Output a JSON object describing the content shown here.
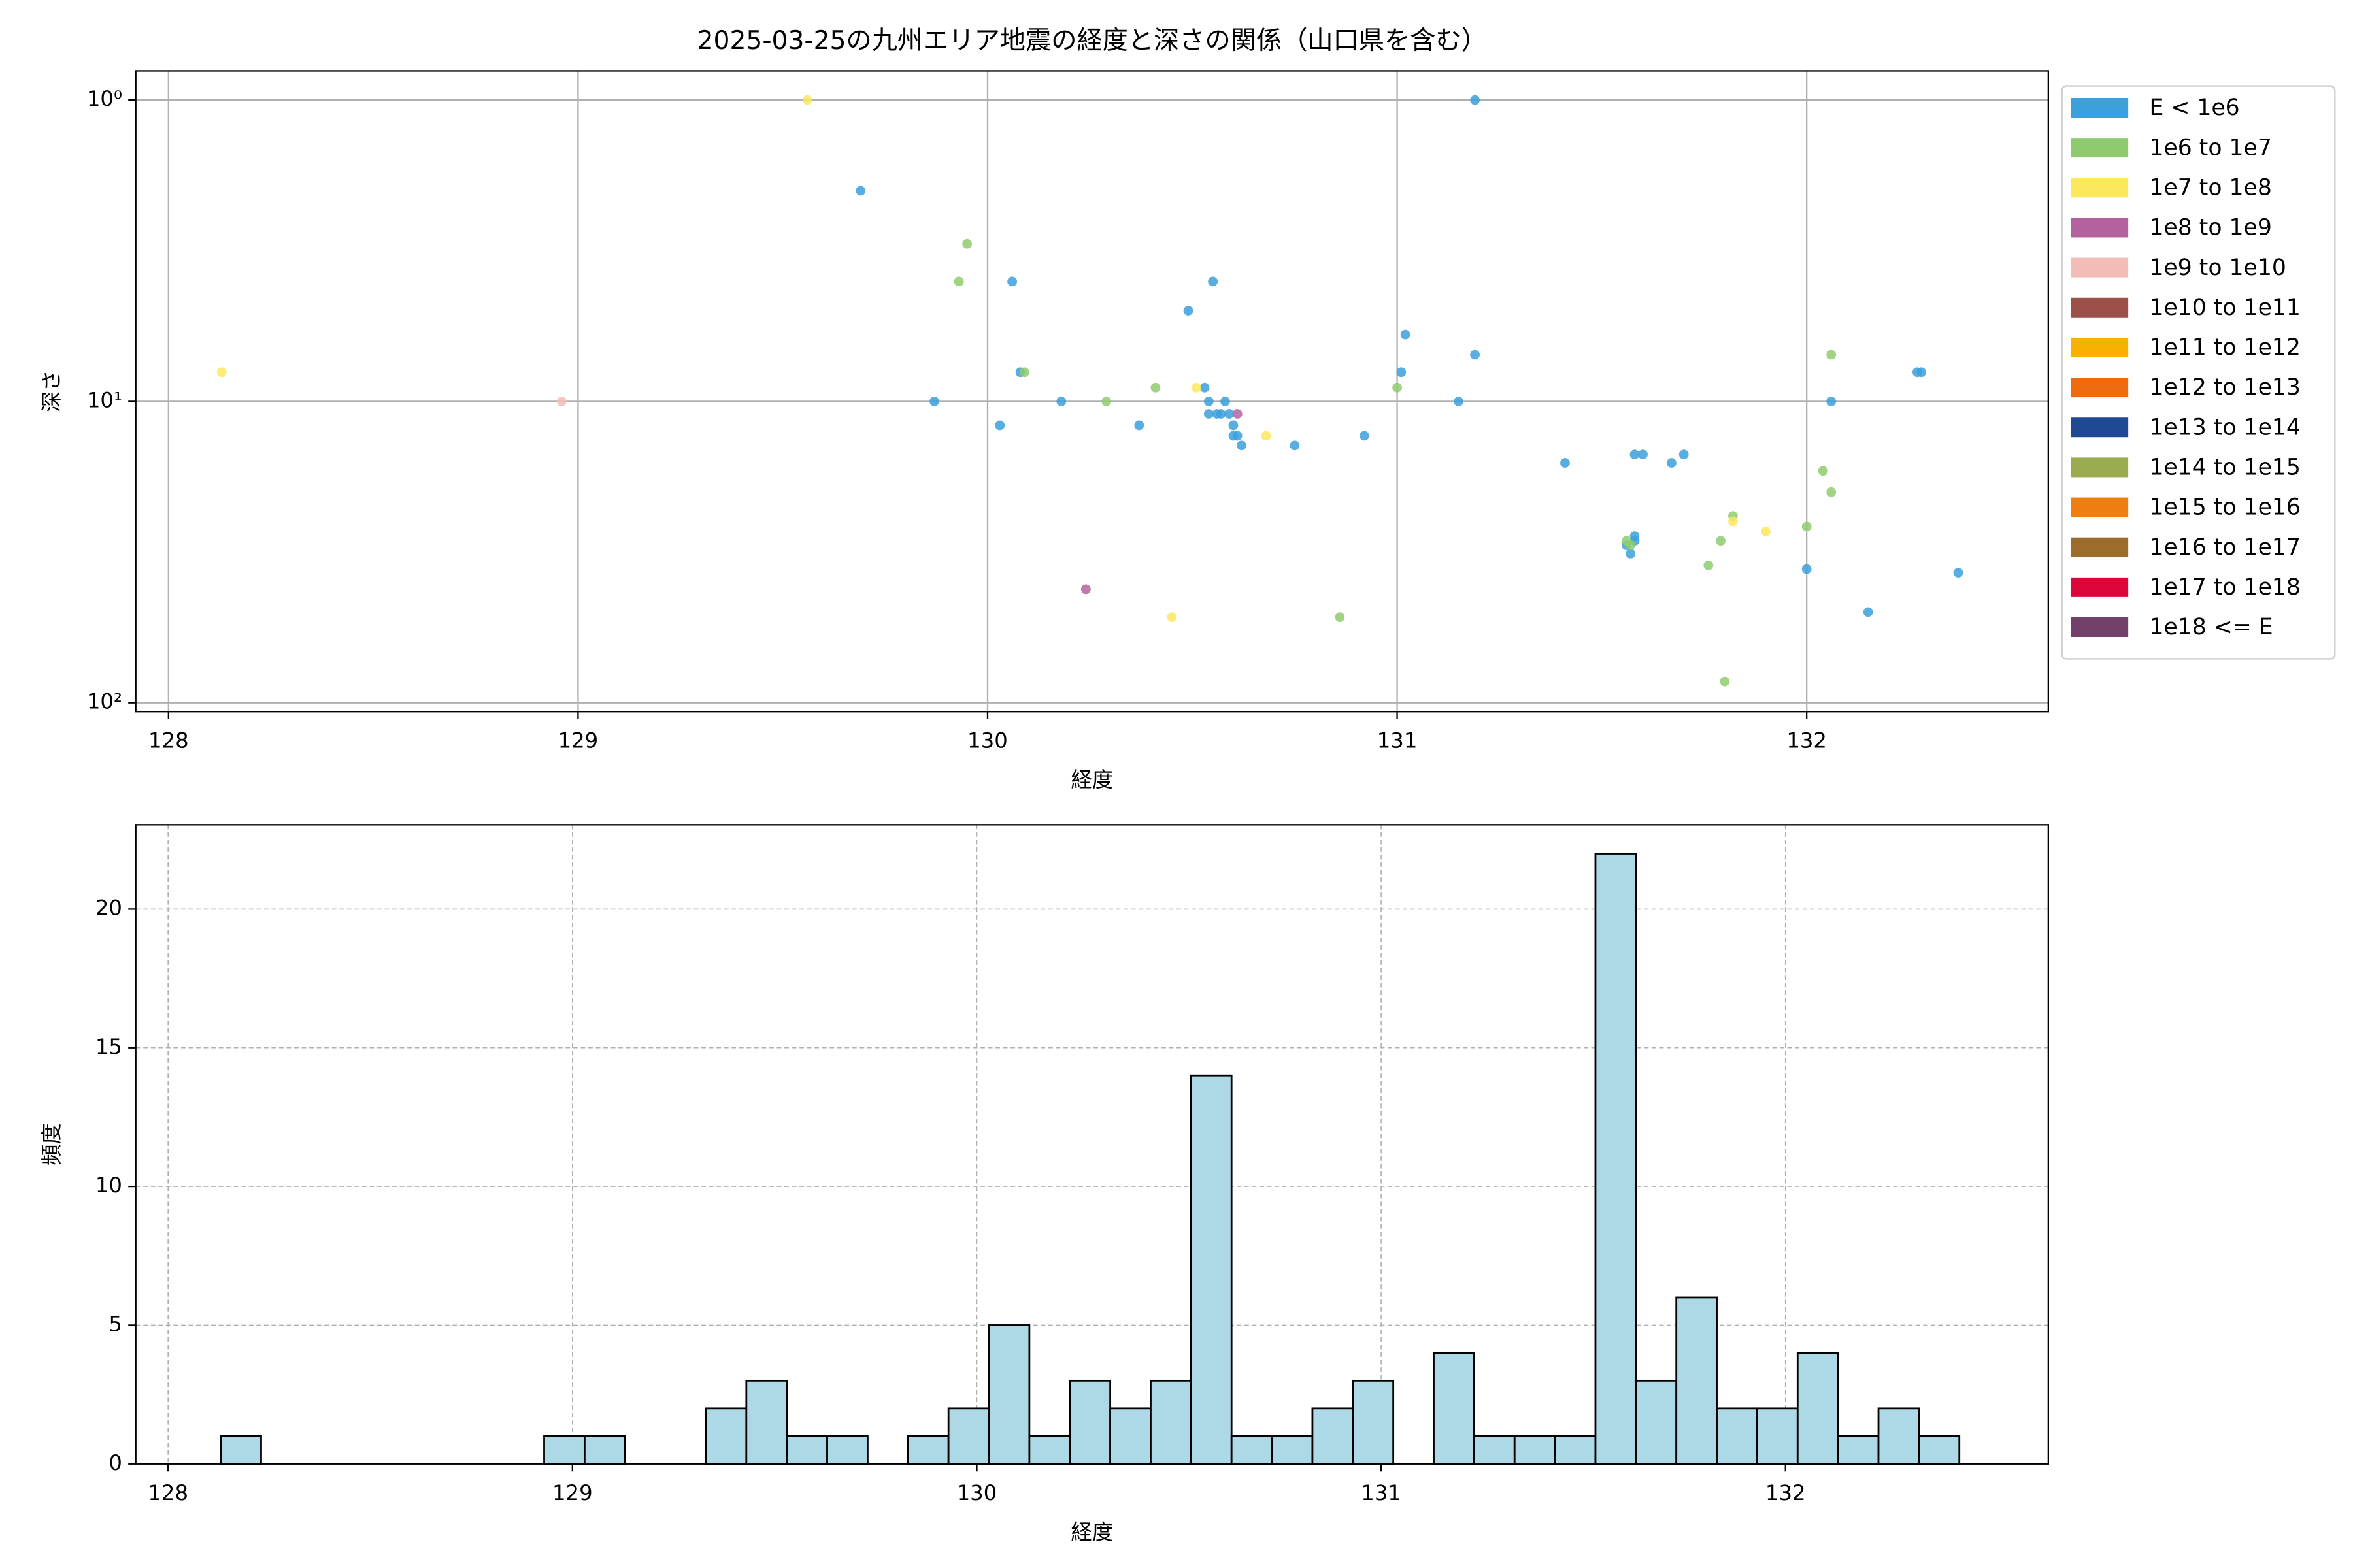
{
  "chart_data": [
    {
      "type": "scatter",
      "title": "2025-03-25の九州エリア地震の経度と深さの関係（山口県を含む）",
      "xlabel": "経度",
      "ylabel": "深さ",
      "xlim": [
        127.92,
        132.59
      ],
      "ylim": [
        107,
        0.8
      ],
      "yscale": "log",
      "xticks": [
        128,
        129,
        130,
        131,
        132
      ],
      "yticks": [
        {
          "value": 1,
          "label": "10⁰"
        },
        {
          "value": 10,
          "label": "10¹"
        },
        {
          "value": 100,
          "label": "10²"
        }
      ],
      "grid": true,
      "legend": "outside upper right",
      "series": [
        {
          "name": "E < 1e6",
          "color": "#3ca0dc",
          "x": [
            129.69,
            131.19,
            130.06,
            130.55,
            130.49,
            131.02,
            131.19,
            130.08,
            131.01,
            132.27,
            132.28,
            129.87,
            130.18,
            131.15,
            132.06,
            130.53,
            130.54,
            130.56,
            130.57,
            130.54,
            130.58,
            130.59,
            130.6,
            130.61,
            130.6,
            130.62,
            130.03,
            130.37,
            130.75,
            130.92,
            131.41,
            131.58,
            131.6,
            131.67,
            131.7,
            131.58,
            131.58,
            131.56,
            131.57,
            132.0,
            132.15,
            132.37
          ],
          "values": [
            2.0,
            1.0,
            4.0,
            4.0,
            5.0,
            6.0,
            7.0,
            8.0,
            8.0,
            8.0,
            8.0,
            10,
            10,
            10,
            10,
            9.0,
            10,
            11,
            11,
            11,
            10,
            11,
            12,
            13,
            13,
            14,
            12,
            12,
            14,
            13,
            16,
            15,
            15,
            16,
            15,
            28,
            29,
            30,
            32,
            36,
            50,
            37
          ]
        },
        {
          "name": "1e6 to 1e7",
          "color": "#8fcb6e",
          "x": [
            129.95,
            129.93,
            130.09,
            130.29,
            130.41,
            131.0,
            132.06,
            132.04,
            132.06,
            132.0,
            131.82,
            131.79,
            131.76,
            131.56,
            131.57,
            130.86,
            131.8
          ],
          "values": [
            3.0,
            4.0,
            8.0,
            10,
            9.0,
            9.0,
            7.0,
            17,
            20,
            26,
            24,
            29,
            35,
            29,
            30,
            52,
            85
          ]
        },
        {
          "name": "1e7 to 1e8",
          "color": "#fbe85d",
          "x": [
            129.56,
            128.13,
            130.51,
            130.68,
            131.82,
            131.9,
            130.45
          ],
          "values": [
            1.0,
            8.0,
            9.0,
            13,
            25,
            27,
            52
          ]
        },
        {
          "name": "1e8 to 1e9",
          "color": "#b4619f",
          "x": [
            130.24,
            130.61
          ],
          "values": [
            42,
            11
          ]
        },
        {
          "name": "1e9 to 1e10",
          "color": "#f4bcb7",
          "x": [
            128.96
          ],
          "values": [
            10
          ]
        },
        {
          "name": "1e10 to 1e11",
          "color": "#9b5049",
          "x": [],
          "values": []
        },
        {
          "name": "1e11 to 1e12",
          "color": "#f7b200",
          "x": [],
          "values": []
        },
        {
          "name": "1e12 to 1e13",
          "color": "#ed6a0e",
          "x": [],
          "values": []
        },
        {
          "name": "1e13 to 1e14",
          "color": "#1d4a92",
          "x": [],
          "values": []
        },
        {
          "name": "1e14 to 1e15",
          "color": "#9aab4f",
          "x": [],
          "values": []
        },
        {
          "name": "1e15 to 1e16",
          "color": "#ef7e12",
          "x": [],
          "values": []
        },
        {
          "name": "1e16 to 1e17",
          "color": "#9b6c2b",
          "x": [],
          "values": []
        },
        {
          "name": "1e17 to 1e18",
          "color": "#dc0539",
          "x": [],
          "values": []
        },
        {
          "name": "1e18 <= E",
          "color": "#733f6b",
          "x": [],
          "values": []
        }
      ]
    },
    {
      "type": "histogram",
      "xlabel": "経度",
      "ylabel": "頻度",
      "xlim": [
        127.92,
        132.65
      ],
      "ylim": [
        0,
        23.04
      ],
      "xticks": [
        128,
        129,
        130,
        131,
        132
      ],
      "yticks": [
        0,
        5,
        10,
        15,
        20
      ],
      "grid": true,
      "color": "#add8e6",
      "edgecolor": "#000000",
      "bins": [
        128.13,
        128.23,
        128.33,
        128.43,
        128.53,
        128.63,
        128.73,
        128.83,
        128.93,
        129.03,
        129.13,
        129.23,
        129.33,
        129.43,
        129.53,
        129.63,
        129.73,
        129.83,
        129.93,
        130.03,
        130.13,
        130.23,
        130.33,
        130.43,
        130.53,
        130.63,
        130.73,
        130.83,
        130.93,
        131.03,
        131.13,
        131.23,
        131.33,
        131.43,
        131.53,
        131.63,
        131.73,
        131.83,
        131.93,
        132.03,
        132.13,
        132.23,
        132.33,
        132.43
      ],
      "values": [
        1,
        0,
        0,
        0,
        0,
        0,
        0,
        0,
        1,
        1,
        0,
        0,
        2,
        3,
        1,
        1,
        0,
        1,
        2,
        5,
        1,
        3,
        2,
        3,
        14,
        1,
        1,
        2,
        3,
        0,
        4,
        1,
        1,
        1,
        22,
        3,
        6,
        2,
        2,
        4,
        1,
        2,
        1
      ]
    }
  ]
}
